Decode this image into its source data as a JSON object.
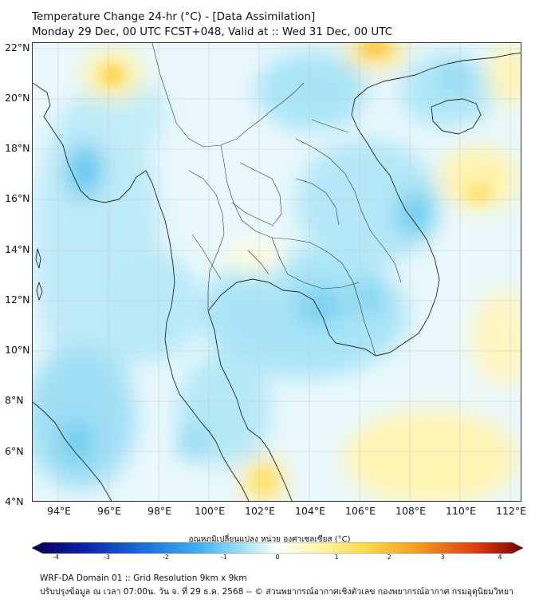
{
  "title": {
    "line1": "Temperature Change 24-hr (°C) - [Data Assimilation]",
    "line2": "Monday 29 Dec, 00 UTC FCST+048, Valid at :: Wed 31 Dec, 00 UTC"
  },
  "map": {
    "lat_labels": [
      "22°N",
      "20°N",
      "18°N",
      "16°N",
      "14°N",
      "12°N",
      "10°N",
      "8°N",
      "6°N",
      "4°N"
    ],
    "lon_labels": [
      "94°E",
      "96°E",
      "98°E",
      "100°E",
      "102°E",
      "104°E",
      "106°E",
      "108°E",
      "110°E",
      "112°E"
    ],
    "lat_range": [
      4,
      22.3
    ],
    "lon_range": [
      93,
      112.5
    ]
  },
  "colorbar": {
    "title": "อุณหภูมิเปลี่ยนแปลง หน่วย องศาเซลเซียส (°C)",
    "ticks": [
      "-4",
      "-3",
      "-2",
      "-1",
      "0",
      "1",
      "2",
      "3",
      "4"
    ],
    "range": [
      -4,
      4
    ],
    "colors": [
      "#08004a",
      "#0a1fa8",
      "#1a6ad8",
      "#3fb0f0",
      "#aee6f8",
      "#ffffff",
      "#fff7b0",
      "#ffd84a",
      "#f5a020",
      "#e04010",
      "#7a0000"
    ]
  },
  "footer": {
    "line1": "WRF-DA Domain 01 :: Grid Resolution 9km x 9km",
    "line2": "ปรับปรุงข้อมูล ณ เวลา 07:00น. วัน จ. ที่ 29 ธ.ค. 2568 -- © ส่วนพยากรณ์อากาศเชิงตัวเลข กองพยากรณ์อากาศ กรมอุตุนิยมวิทยา"
  }
}
